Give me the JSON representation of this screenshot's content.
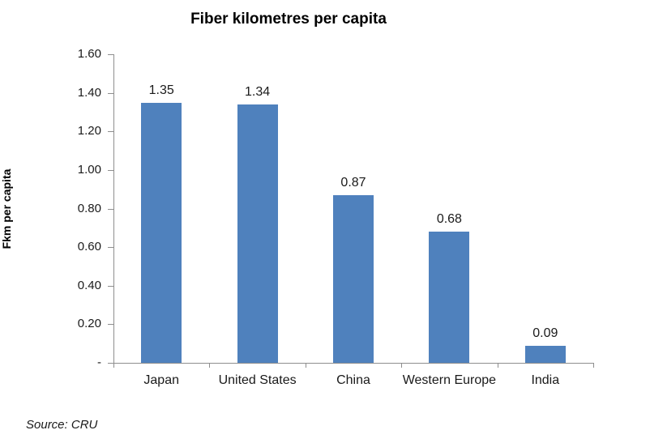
{
  "chart_data": {
    "type": "bar",
    "title": "Fiber kilometres per capita",
    "xlabel": "",
    "ylabel": "Fkm per capita",
    "categories": [
      "Japan",
      "United States",
      "China",
      "Western Europe",
      "India"
    ],
    "values": [
      1.35,
      1.34,
      0.87,
      0.68,
      0.09
    ],
    "data_labels": [
      "1.35",
      "1.34",
      "0.87",
      "0.68",
      "0.09"
    ],
    "ylim": [
      0,
      1.6
    ],
    "y_ticks": [
      {
        "value": 1.6,
        "label": "1.60"
      },
      {
        "value": 1.4,
        "label": "1.40"
      },
      {
        "value": 1.2,
        "label": "1.20"
      },
      {
        "value": 1.0,
        "label": "1.00"
      },
      {
        "value": 0.8,
        "label": "0.80"
      },
      {
        "value": 0.6,
        "label": "0.60"
      },
      {
        "value": 0.4,
        "label": "0.40"
      },
      {
        "value": 0.2,
        "label": "0.20"
      },
      {
        "value": 0.0,
        "label": "-"
      }
    ],
    "grid": false,
    "legend": "none",
    "bar_color": "#4F81BD",
    "axis_color": "#8e8e8e"
  },
  "source_note": "Source: CRU"
}
